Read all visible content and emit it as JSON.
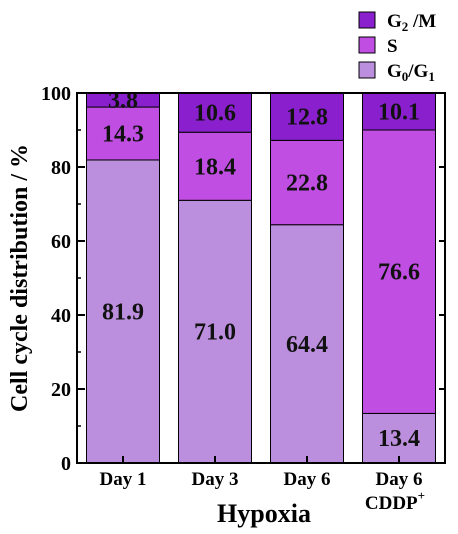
{
  "chart_data": {
    "type": "bar",
    "stacked": true,
    "categories": [
      "Day 1",
      "Day 3",
      "Day 6",
      "Day 6"
    ],
    "category_suffix": [
      "",
      "",
      "",
      "CDDP+"
    ],
    "group_label": "Hypoxia",
    "ylabel": "Cell cycle distribution / %",
    "xlabel": "Hypoxia",
    "ylim": [
      0,
      100
    ],
    "yticks": [
      0,
      20,
      40,
      60,
      80,
      100
    ],
    "grid": false,
    "legend_position": "top-right",
    "series": [
      {
        "name": "G0/G1",
        "color": "#bc8fde",
        "values": [
          81.9,
          71.0,
          64.4,
          13.4
        ],
        "labels": [
          "81.9",
          "71.0",
          "64.4",
          "13.4"
        ]
      },
      {
        "name": "S",
        "color": "#c14ee3",
        "values": [
          14.3,
          18.4,
          22.8,
          76.6
        ],
        "labels": [
          "14.3",
          "18.4",
          "22.8",
          "76.6"
        ]
      },
      {
        "name": "G2/M",
        "color": "#8a1fce",
        "values": [
          3.8,
          10.6,
          12.8,
          10.1
        ],
        "labels": [
          "3.8",
          "10.6",
          "12.8",
          "10.1"
        ]
      }
    ],
    "legend": [
      {
        "main": "G",
        "sub": "2",
        "rest": " /M",
        "color": "#8a1fce"
      },
      {
        "main": "S",
        "sub": "",
        "rest": "",
        "color": "#c14ee3"
      },
      {
        "main": "G",
        "sub": "0",
        "rest": "/G",
        "sub2": "1",
        "color": "#bc8fde"
      }
    ]
  }
}
